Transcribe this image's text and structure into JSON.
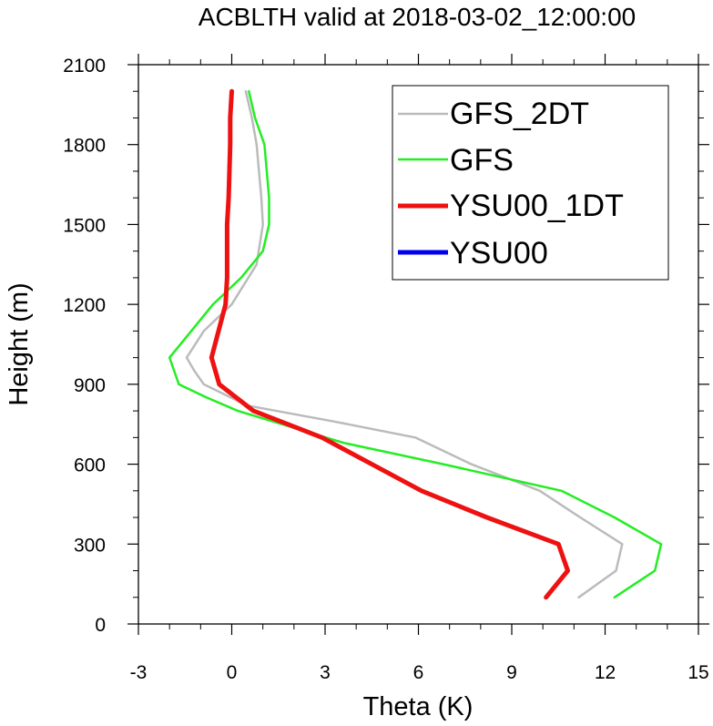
{
  "chart_data": {
    "type": "line",
    "title": "ACBLTH valid at 2018-03-02_12:00:00",
    "xlabel": "Theta (K)",
    "ylabel": "Height (m)",
    "xlim": [
      -3,
      15
    ],
    "ylim": [
      0,
      2100
    ],
    "xticks": [
      -3,
      0,
      3,
      6,
      9,
      12,
      15
    ],
    "yticks": [
      0,
      300,
      600,
      900,
      1200,
      1500,
      1800,
      2100
    ],
    "xtick_labels": [
      "-3",
      "0",
      "3",
      "6",
      "9",
      "12",
      "15"
    ],
    "ytick_labels": [
      "0",
      "300",
      "600",
      "900",
      "1200",
      "1500",
      "1800",
      "2100"
    ],
    "grid": false,
    "legend_position": "top-right",
    "series": [
      {
        "name": "GFS_2DT",
        "color": "#bbbbbb",
        "x": [
          11.15,
          12.35,
          12.55,
          11.2,
          9.9,
          7.7,
          5.9,
          3.3,
          0.5,
          -0.9,
          -1.2,
          -1.45,
          -0.9,
          0.0,
          0.8,
          1.0,
          0.95,
          0.8,
          0.65,
          0.45
        ],
        "y": [
          100,
          200,
          300,
          400,
          500,
          600,
          700,
          760,
          820,
          900,
          950,
          1000,
          1100,
          1200,
          1350,
          1500,
          1600,
          1800,
          1900,
          2000
        ]
      },
      {
        "name": "GFS",
        "color": "#22ee22",
        "x": [
          12.3,
          13.6,
          13.8,
          12.3,
          10.6,
          6.8,
          3.6,
          0.2,
          -0.8,
          -1.7,
          -2.0,
          -0.6,
          0.3,
          1.0,
          1.2,
          1.2,
          1.05,
          0.75,
          0.55
        ],
        "y": [
          100,
          200,
          300,
          400,
          500,
          600,
          680,
          800,
          850,
          900,
          1000,
          1200,
          1300,
          1400,
          1500,
          1600,
          1800,
          1900,
          2000
        ]
      },
      {
        "name": "YSU00_1DT",
        "color": "#ee1111",
        "x": [
          10.1,
          10.8,
          10.5,
          8.2,
          6.1,
          4.5,
          2.9,
          0.7,
          -0.4,
          -0.65,
          -0.2,
          -0.15,
          -0.15,
          -0.1,
          -0.05,
          -0.05,
          0.0
        ],
        "y": [
          100,
          200,
          300,
          400,
          500,
          600,
          700,
          800,
          900,
          1000,
          1200,
          1300,
          1500,
          1600,
          1800,
          1900,
          2000
        ]
      },
      {
        "name": "YSU00",
        "color": "#0000ee",
        "x": [],
        "y": []
      }
    ]
  }
}
